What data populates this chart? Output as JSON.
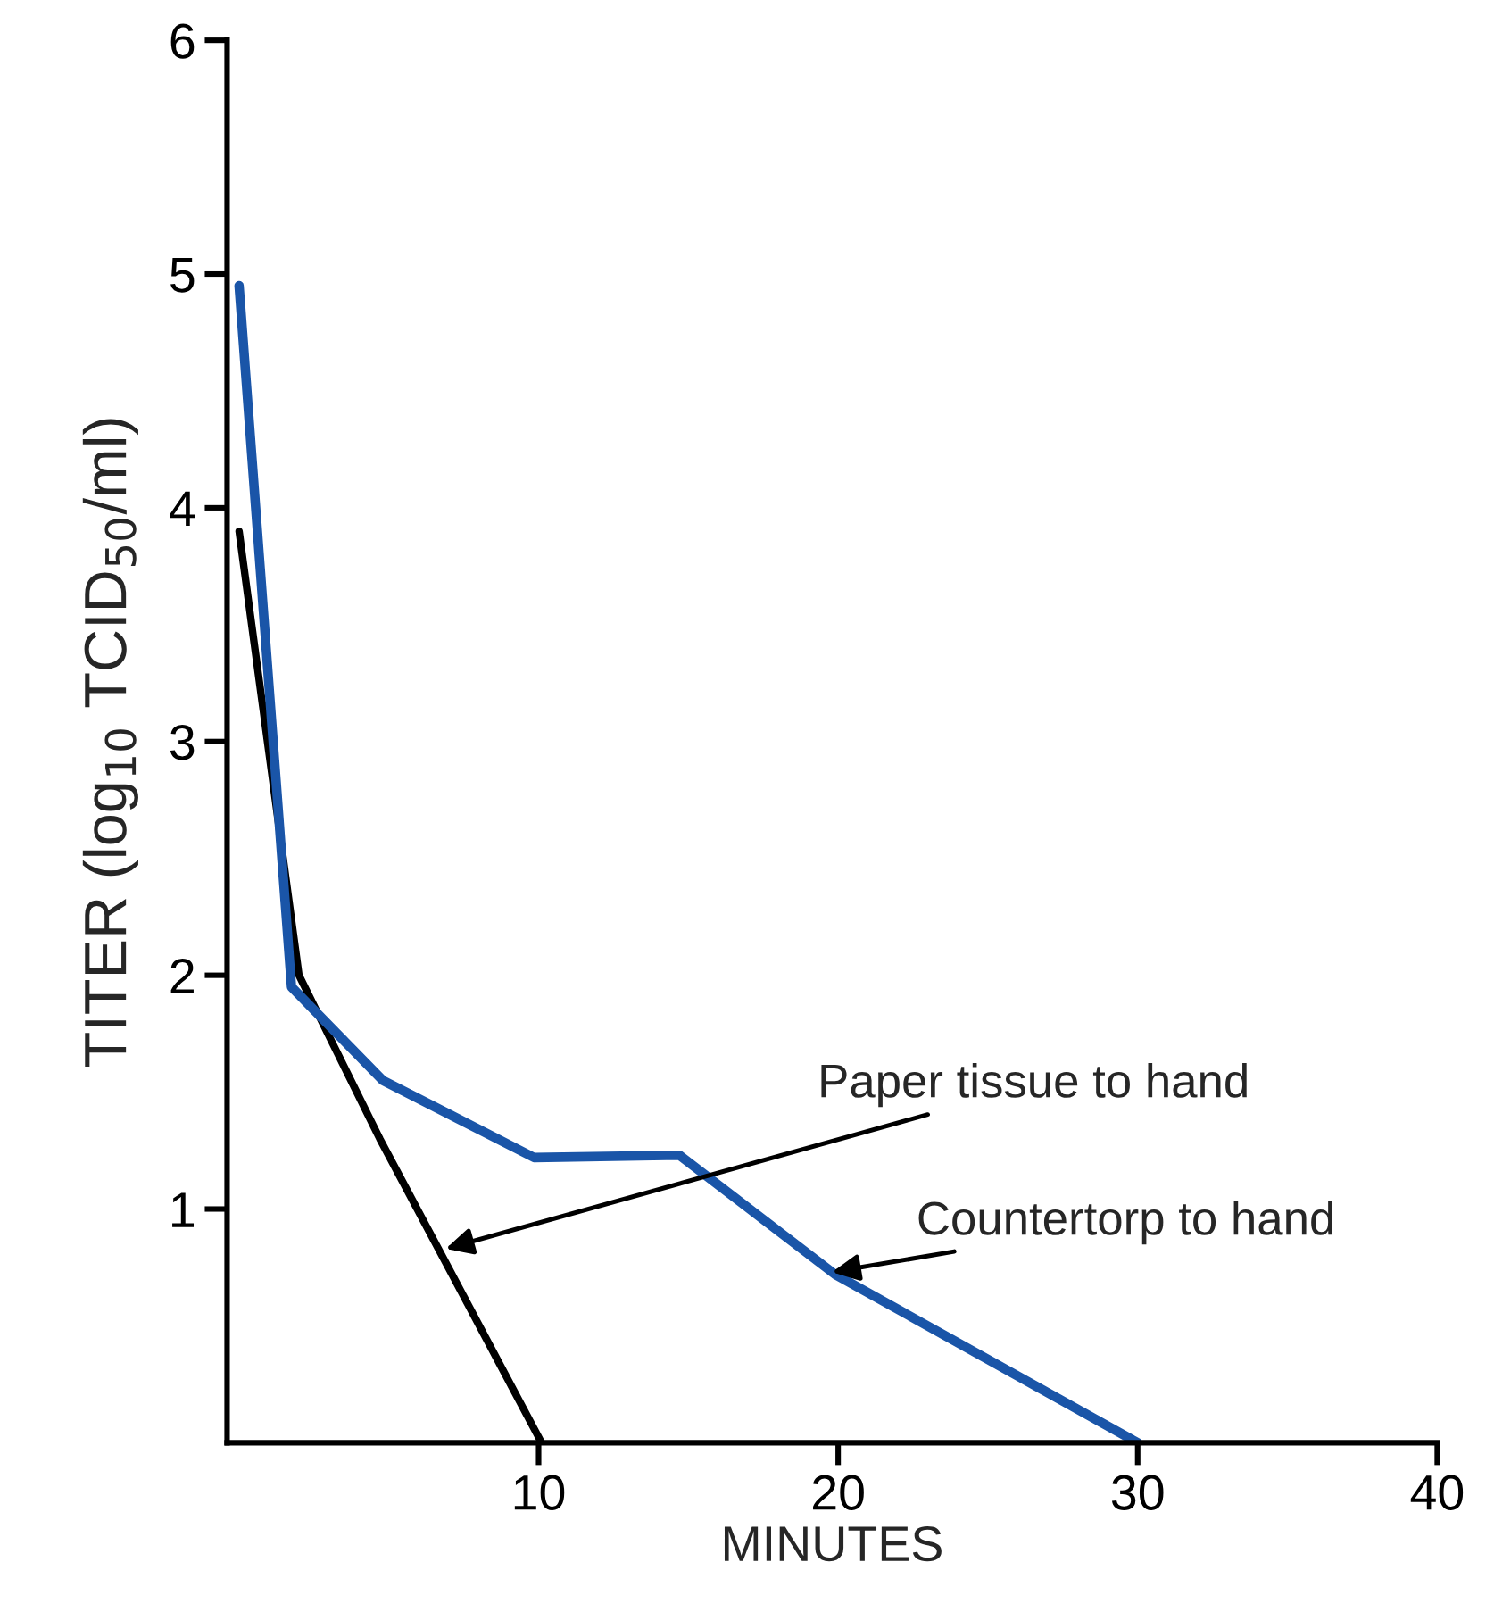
{
  "chart_data": {
    "type": "line",
    "xlabel": "MINUTES",
    "ylabel": "TITER (log$_{10}$ TCID$_{50}$/ml)",
    "xlim": [
      -0.4,
      40
    ],
    "ylim": [
      0,
      6
    ],
    "xticks": [
      10,
      20,
      30,
      40
    ],
    "yticks": [
      1,
      2,
      3,
      4,
      5,
      6
    ],
    "grid": false,
    "legend": false,
    "marker": "none",
    "line_style": "solid",
    "series": [
      {
        "color": "#000000",
        "x": [
          0,
          2,
          4.7,
          10.1
        ],
        "values": [
          3.9,
          2.0,
          1.3,
          0
        ]
      },
      {
        "color": "#1a55a8",
        "x": [
          0,
          1.75,
          4.8,
          9.85,
          14.7,
          19.9,
          30
        ],
        "values": [
          4.95,
          1.95,
          1.55,
          1.22,
          1.23,
          0.72,
          0
        ]
      }
    ],
    "annotations": [
      {
        "text": "Paper tissue to hand",
        "x": 6.9,
        "y": 0.83
      },
      {
        "text": "Countertorp to hand",
        "x": 19.8,
        "y": 0.73
      }
    ]
  }
}
